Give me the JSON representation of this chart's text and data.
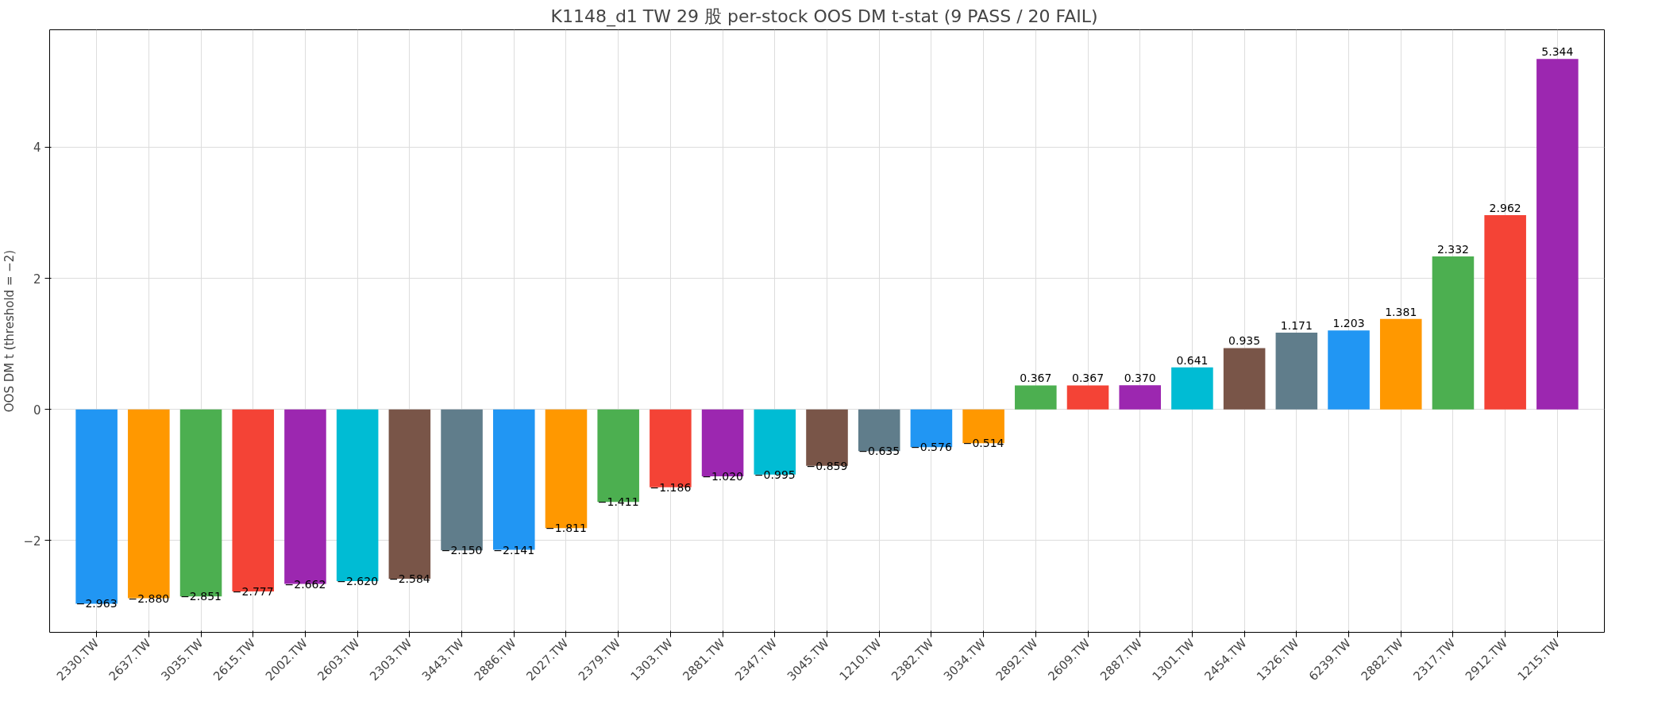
{
  "chart_data": {
    "type": "bar",
    "title": "K1148_d1 TW 29 股 per-stock OOS DM t-stat  (9 PASS / 20 FAIL)",
    "ylabel": "OOS DM t (threshold = −2)",
    "categories": [
      "2330.TW",
      "2637.TW",
      "3035.TW",
      "2615.TW",
      "2002.TW",
      "2603.TW",
      "2303.TW",
      "3443.TW",
      "2886.TW",
      "2027.TW",
      "2379.TW",
      "1303.TW",
      "2881.TW",
      "2347.TW",
      "3045.TW",
      "1210.TW",
      "2382.TW",
      "3034.TW",
      "2892.TW",
      "2609.TW",
      "2887.TW",
      "1301.TW",
      "2454.TW",
      "1326.TW",
      "6239.TW",
      "2882.TW",
      "2317.TW",
      "2912.TW",
      "1215.TW"
    ],
    "values": [
      -2.963,
      -2.88,
      -2.851,
      -2.777,
      -2.662,
      -2.62,
      -2.584,
      -2.15,
      -2.141,
      -1.811,
      -1.411,
      -1.186,
      -1.02,
      -0.995,
      -0.859,
      -0.635,
      -0.576,
      -0.514,
      0.367,
      0.367,
      0.37,
      0.641,
      0.935,
      1.171,
      1.203,
      1.381,
      2.332,
      2.962,
      5.344
    ],
    "value_labels": [
      "−2.963",
      "−2.880",
      "−2.851",
      "−2.777",
      "−2.662",
      "−2.620",
      "−2.584",
      "−2.150",
      "−2.141",
      "−1.811",
      "−1.411",
      "−1.186",
      "−1.020",
      "−0.995",
      "−0.859",
      "−0.635",
      "−0.576",
      "−0.514",
      "0.367",
      "0.367",
      "0.370",
      "0.641",
      "0.935",
      "1.171",
      "1.203",
      "1.381",
      "2.332",
      "2.962",
      "5.344"
    ],
    "colors": [
      "#2196f3",
      "#ff9800",
      "#4caf50",
      "#f44336",
      "#9c27b0",
      "#00bcd4",
      "#795548",
      "#607d8b",
      "#2196f3",
      "#ff9800",
      "#4caf50",
      "#f44336",
      "#9c27b0",
      "#00bcd4",
      "#795548",
      "#607d8b",
      "#2196f3",
      "#ff9800",
      "#4caf50",
      "#f44336",
      "#9c27b0",
      "#00bcd4",
      "#795548",
      "#607d8b",
      "#2196f3",
      "#ff9800",
      "#4caf50",
      "#f44336",
      "#9c27b0"
    ],
    "ylim": [
      -3.4,
      5.79
    ],
    "yticks": [
      {
        "value": -2,
        "label": "−2"
      },
      0,
      2,
      4
    ],
    "grid": true
  }
}
